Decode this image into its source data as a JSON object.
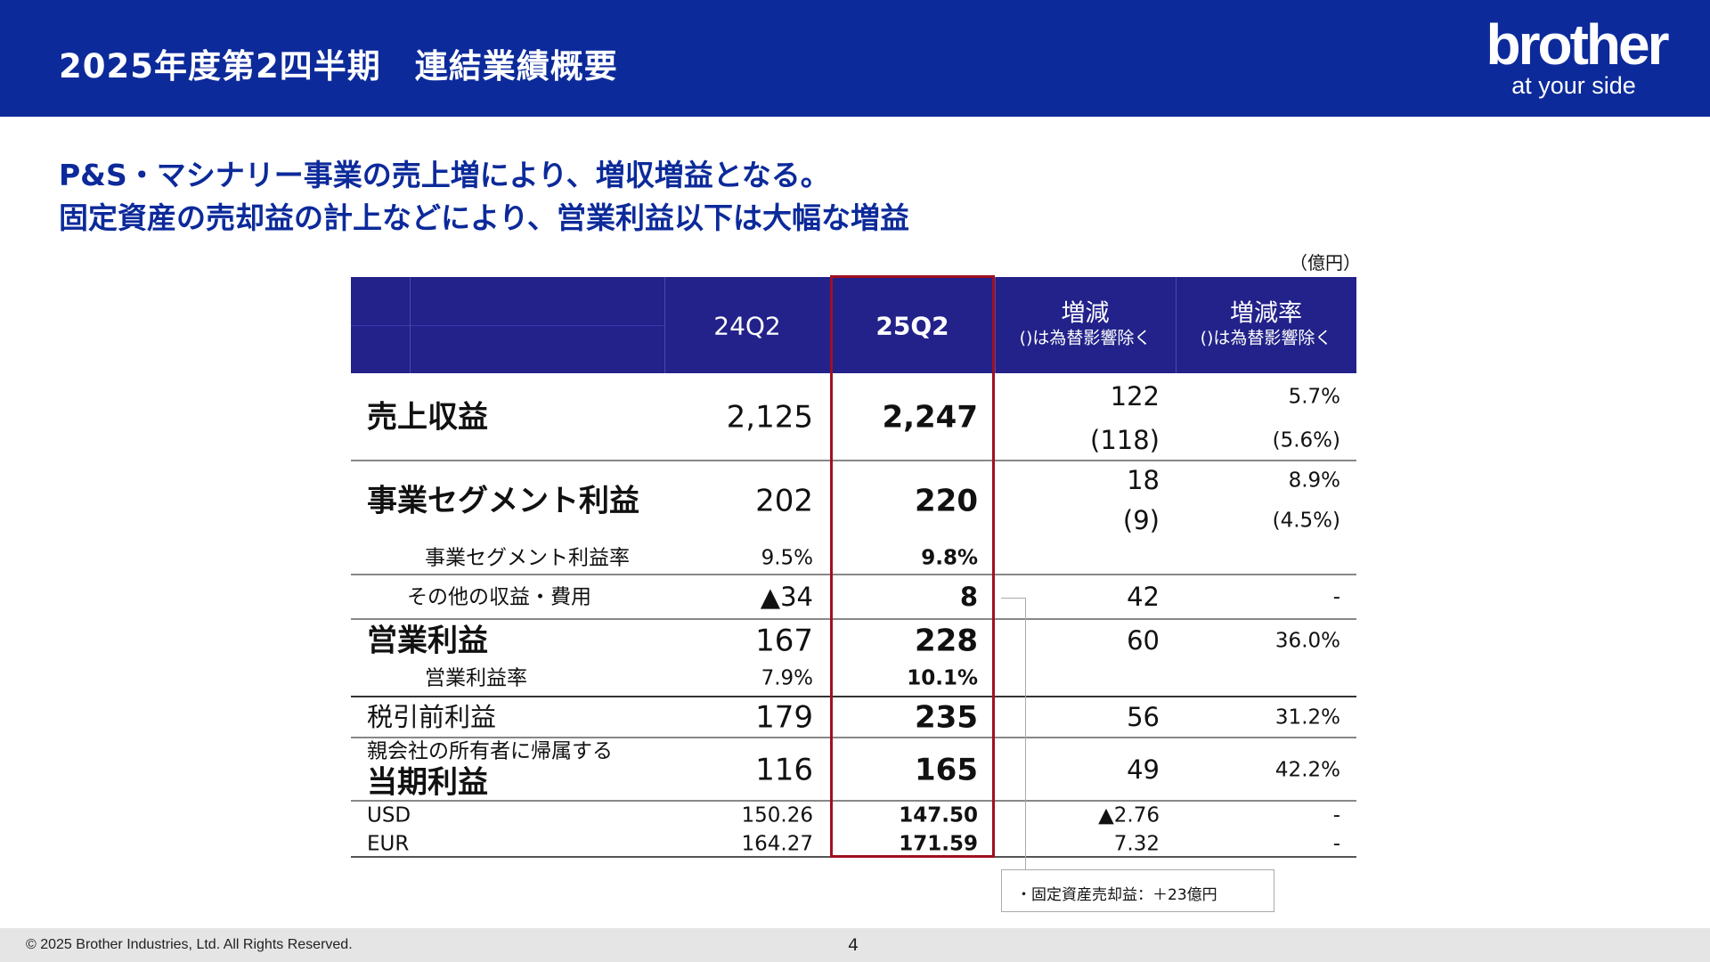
{
  "header": {
    "title": "2025年度第2四半期　連結業績概要",
    "logo_main": "brother",
    "logo_tagline": "at your side",
    "brand_color": "#0c2a9a"
  },
  "headline": [
    "P&S・マシナリー事業の売上増により、増収増益となる。",
    "固定資産の売却益の計上などにより、営業利益以下は大幅な増益"
  ],
  "table": {
    "unit": "（億円）",
    "columns": {
      "prev": "24Q2",
      "curr": "25Q2",
      "diff": "増減",
      "diff_note": "()は為替影響除く",
      "rate": "増減率",
      "rate_note": "()は為替影響除く"
    },
    "rows": {
      "revenue": {
        "label": "売上収益",
        "prev": "2,125",
        "curr": "2,247",
        "diff": "122",
        "diff_fx": "(118)",
        "rate": "5.7%",
        "rate_fx": "(5.6%)"
      },
      "segment": {
        "label": "事業セグメント利益",
        "prev": "202",
        "curr": "220",
        "diff": "18",
        "diff_fx": "(9)",
        "rate": "8.9%",
        "rate_fx": "(4.5%)"
      },
      "segment_margin": {
        "label": "事業セグメント利益率",
        "prev": "9.5%",
        "curr": "9.8%"
      },
      "other": {
        "label": "その他の収益・費用",
        "prev": "▲34",
        "curr": "8",
        "diff": "42",
        "rate": "-"
      },
      "operating": {
        "label": "営業利益",
        "prev": "167",
        "curr": "228",
        "diff": "60",
        "rate": "36.0%"
      },
      "operating_margin": {
        "label": "営業利益率",
        "prev": "7.9%",
        "curr": "10.1%"
      },
      "pretax": {
        "label": "税引前利益",
        "prev": "179",
        "curr": "235",
        "diff": "56",
        "rate": "31.2%"
      },
      "net": {
        "label_small": "親会社の所有者に帰属する",
        "label": "当期利益",
        "prev": "116",
        "curr": "165",
        "diff": "49",
        "rate": "42.2%"
      },
      "usd": {
        "label": "USD",
        "prev": "150.26",
        "curr": "147.50",
        "diff": "▲2.76",
        "rate": "-"
      },
      "eur": {
        "label": "EUR",
        "prev": "164.27",
        "curr": "171.59",
        "diff": "7.32",
        "rate": "-"
      }
    },
    "highlight_color": "#a01020"
  },
  "note": "・固定資産売却益：＋23億円",
  "footer": {
    "copyright": "© 2025 Brother Industries, Ltd. All Rights Reserved.",
    "page": "4"
  }
}
